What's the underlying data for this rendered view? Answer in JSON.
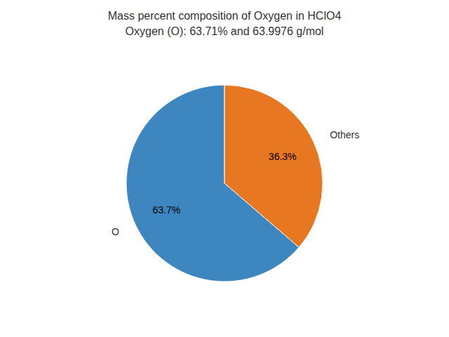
{
  "chart_data": {
    "type": "pie",
    "title": "Mass percent composition of Oxygen in HClO4",
    "subtitle": "Oxygen (O): 63.71% and 63.9976 g/mol",
    "categories": [
      "O",
      "Others"
    ],
    "values": [
      63.7,
      36.3
    ],
    "value_labels": [
      "63.7%",
      "36.3%"
    ],
    "colors": [
      "#3d86c0",
      "#e87722"
    ],
    "data_labels": true
  }
}
